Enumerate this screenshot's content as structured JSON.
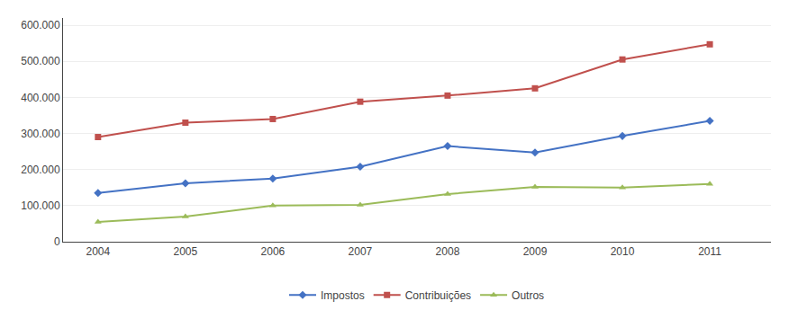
{
  "chart_data": {
    "type": "line",
    "x": [
      2004,
      2005,
      2006,
      2007,
      2008,
      2009,
      2010,
      2011
    ],
    "series": [
      {
        "name": "Impostos",
        "color": "#4472C4",
        "marker": "diamond",
        "values": [
          135000,
          162000,
          175000,
          208000,
          265000,
          247000,
          293000,
          335000
        ]
      },
      {
        "name": "Contribuições",
        "color": "#C0504D",
        "marker": "square",
        "values": [
          290000,
          330000,
          340000,
          388000,
          405000,
          425000,
          505000,
          547000
        ]
      },
      {
        "name": "Outros",
        "color": "#9BBB59",
        "marker": "triangle-up",
        "values": [
          55000,
          70000,
          100000,
          102000,
          132000,
          152000,
          150000,
          160000
        ]
      }
    ],
    "xlim": [
      2003.6,
      2011.7
    ],
    "xticks": [
      2004,
      2005,
      2006,
      2007,
      2008,
      2009,
      2010,
      2011
    ],
    "ylim": [
      0,
      620000
    ],
    "yticks": [
      0,
      {
        "value": 100000,
        "label": "100.000"
      },
      {
        "value": 200000,
        "label": "200.000"
      },
      {
        "value": 300000,
        "label": "300.000"
      },
      {
        "value": 400000,
        "label": "400.000"
      },
      {
        "value": 500000,
        "label": "500.000"
      },
      {
        "value": 600000,
        "label": "600.000"
      }
    ],
    "grid": "y",
    "legend": "bottom"
  }
}
